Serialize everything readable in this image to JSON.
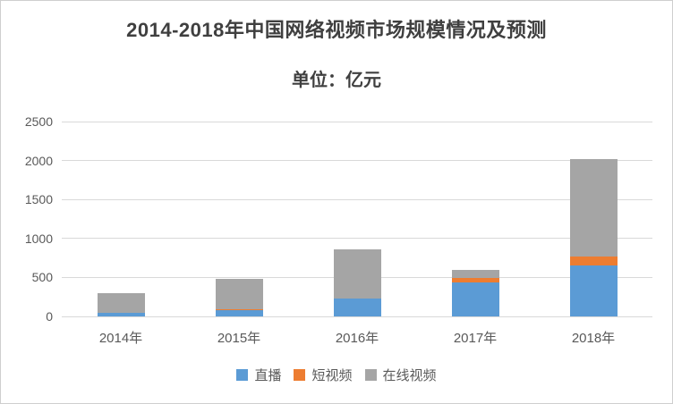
{
  "window": {
    "background_color": "#ffffff",
    "border_color": "#cfcfcf"
  },
  "header": {
    "title": "2014-2018年中国网络视频市场规模情况及预测",
    "subtitle": "单位：亿元"
  },
  "chart_data": {
    "type": "bar",
    "stacked": true,
    "title": "2014-2018年中国网络视频市场规模情况及预测",
    "subtitle": "单位：亿元",
    "xlabel": "",
    "ylabel": "",
    "unit": "亿元",
    "categories": [
      "2014年",
      "2015年",
      "2016年",
      "2017年",
      "2018年"
    ],
    "series": [
      {
        "name": "直播",
        "color": "#5B9BD5",
        "values": [
          50,
          85,
          225,
          435,
          650
        ]
      },
      {
        "name": "短视频",
        "color": "#ED7D31",
        "values": [
          1,
          3,
          10,
          57,
          122
        ]
      },
      {
        "name": "在线视频",
        "color": "#A5A5A5",
        "values": [
          250,
          390,
          630,
          100,
          1250
        ]
      }
    ],
    "totals": [
      301,
      478,
      865,
      592,
      2022
    ],
    "ylim": [
      0,
      2500
    ],
    "yticks": [
      0,
      500,
      1000,
      1500,
      2000,
      2500
    ],
    "grid": true,
    "gridline_color": "#d9d9d9",
    "axis_text_color": "#595959",
    "title_text_color": "#3f3f3f",
    "legend_position": "bottom"
  }
}
